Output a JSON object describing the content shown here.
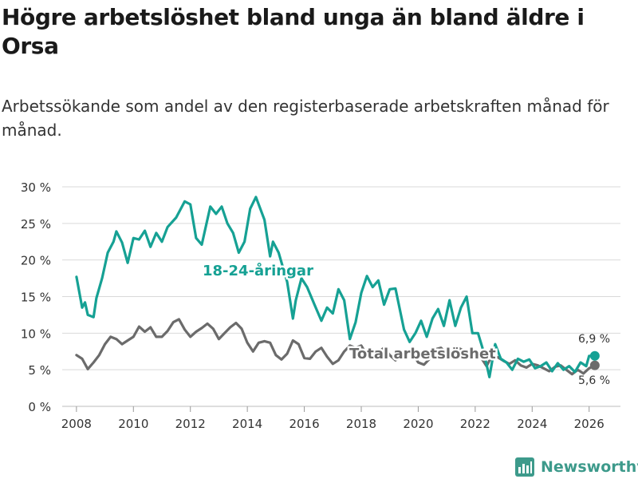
{
  "header": {
    "title": "Högre arbetslöshet bland unga än bland äldre i Orsa",
    "subtitle": "Arbetssökande som andel av den registerbaserade arbetskraften månad för månad."
  },
  "brand": {
    "name": "Newsworthy",
    "icon": "bar-chart-logo-icon"
  },
  "colors": {
    "youth": "#16a194",
    "total": "#6b6b6b",
    "grid": "#d9d9d9",
    "brand": "#3d9a8b"
  },
  "chart_data": {
    "type": "line",
    "title": "Högre arbetslöshet bland unga än bland äldre i Orsa",
    "xlabel": "",
    "ylabel": "",
    "xlim": [
      2007.5,
      2027.1
    ],
    "ylim": [
      0,
      30
    ],
    "grid": true,
    "x_ticks": [
      2008,
      2010,
      2012,
      2014,
      2016,
      2018,
      2020,
      2022,
      2024,
      2026
    ],
    "x_tick_labels": [
      "2008",
      "2010",
      "2012",
      "2014",
      "2016",
      "2018",
      "2020",
      "2022",
      "2024",
      "2026"
    ],
    "y_ticks": [
      0,
      5,
      10,
      15,
      20,
      25,
      30
    ],
    "y_tick_labels": [
      "0 %",
      "5 %",
      "10 %",
      "15 %",
      "20 %",
      "25 %",
      "30 %"
    ],
    "series": [
      {
        "name": "18-24-åringar",
        "label": "18-24-åringar",
        "end_label": "6,9 %",
        "points": [
          [
            2008.0,
            17.7
          ],
          [
            2008.2,
            13.5
          ],
          [
            2008.3,
            14.2
          ],
          [
            2008.4,
            12.5
          ],
          [
            2008.6,
            12.2
          ],
          [
            2008.7,
            14.8
          ],
          [
            2008.9,
            17.5
          ],
          [
            2009.1,
            21
          ],
          [
            2009.3,
            22.5
          ],
          [
            2009.4,
            23.9
          ],
          [
            2009.6,
            22.4
          ],
          [
            2009.8,
            19.6
          ],
          [
            2010.0,
            23
          ],
          [
            2010.2,
            22.8
          ],
          [
            2010.4,
            24
          ],
          [
            2010.6,
            21.8
          ],
          [
            2010.8,
            23.7
          ],
          [
            2011.0,
            22.5
          ],
          [
            2011.2,
            24.5
          ],
          [
            2011.5,
            25.8
          ],
          [
            2011.8,
            28
          ],
          [
            2012.0,
            27.6
          ],
          [
            2012.2,
            23
          ],
          [
            2012.4,
            22.1
          ],
          [
            2012.7,
            27.3
          ],
          [
            2012.9,
            26.3
          ],
          [
            2013.1,
            27.3
          ],
          [
            2013.3,
            25
          ],
          [
            2013.5,
            23.7
          ],
          [
            2013.7,
            21
          ],
          [
            2013.9,
            22.5
          ],
          [
            2014.1,
            27
          ],
          [
            2014.3,
            28.6
          ],
          [
            2014.6,
            25.5
          ],
          [
            2014.8,
            20.5
          ],
          [
            2014.9,
            22.5
          ],
          [
            2015.1,
            21
          ],
          [
            2015.4,
            17
          ],
          [
            2015.6,
            12
          ],
          [
            2015.7,
            14.5
          ],
          [
            2015.9,
            17.5
          ],
          [
            2016.1,
            16.3
          ],
          [
            2016.4,
            13.5
          ],
          [
            2016.6,
            11.7
          ],
          [
            2016.8,
            13.5
          ],
          [
            2017.0,
            12.7
          ],
          [
            2017.2,
            16
          ],
          [
            2017.4,
            14.5
          ],
          [
            2017.6,
            9.2
          ],
          [
            2017.8,
            11.5
          ],
          [
            2018.0,
            15.5
          ],
          [
            2018.2,
            17.8
          ],
          [
            2018.4,
            16.3
          ],
          [
            2018.6,
            17.2
          ],
          [
            2018.8,
            13.9
          ],
          [
            2019.0,
            16
          ],
          [
            2019.2,
            16.1
          ],
          [
            2019.5,
            10.5
          ],
          [
            2019.7,
            8.8
          ],
          [
            2019.9,
            10
          ],
          [
            2020.1,
            11.7
          ],
          [
            2020.3,
            9.5
          ],
          [
            2020.5,
            12
          ],
          [
            2020.7,
            13.3
          ],
          [
            2020.9,
            11
          ],
          [
            2021.1,
            14.5
          ],
          [
            2021.3,
            11
          ],
          [
            2021.5,
            13.5
          ],
          [
            2021.7,
            15
          ],
          [
            2021.9,
            10
          ],
          [
            2022.1,
            10
          ],
          [
            2022.3,
            7.4
          ],
          [
            2022.5,
            4
          ],
          [
            2022.7,
            8.5
          ],
          [
            2022.9,
            6.5
          ],
          [
            2023.1,
            6
          ],
          [
            2023.3,
            5
          ],
          [
            2023.5,
            6.5
          ],
          [
            2023.7,
            6.1
          ],
          [
            2023.9,
            6.4
          ],
          [
            2024.1,
            5.2
          ],
          [
            2024.3,
            5.5
          ],
          [
            2024.5,
            6
          ],
          [
            2024.7,
            4.8
          ],
          [
            2024.9,
            5.9
          ],
          [
            2025.1,
            5
          ],
          [
            2025.3,
            5.5
          ],
          [
            2025.5,
            4.7
          ],
          [
            2025.7,
            6
          ],
          [
            2025.9,
            5.5
          ],
          [
            2026.0,
            6.9
          ],
          [
            2026.2,
            6.9
          ]
        ]
      },
      {
        "name": "Total arbetslöshet",
        "label": "Total arbetslöshet",
        "end_label": "5,6 %",
        "points": [
          [
            2008.0,
            7
          ],
          [
            2008.2,
            6.5
          ],
          [
            2008.4,
            5.1
          ],
          [
            2008.6,
            6
          ],
          [
            2008.8,
            7
          ],
          [
            2009.0,
            8.5
          ],
          [
            2009.2,
            9.5
          ],
          [
            2009.4,
            9.2
          ],
          [
            2009.6,
            8.5
          ],
          [
            2009.8,
            9
          ],
          [
            2010.0,
            9.5
          ],
          [
            2010.2,
            10.9
          ],
          [
            2010.4,
            10.2
          ],
          [
            2010.6,
            10.8
          ],
          [
            2010.8,
            9.5
          ],
          [
            2011.0,
            9.5
          ],
          [
            2011.2,
            10.3
          ],
          [
            2011.4,
            11.5
          ],
          [
            2011.6,
            11.9
          ],
          [
            2011.8,
            10.5
          ],
          [
            2012.0,
            9.5
          ],
          [
            2012.2,
            10.2
          ],
          [
            2012.4,
            10.7
          ],
          [
            2012.6,
            11.3
          ],
          [
            2012.8,
            10.6
          ],
          [
            2013.0,
            9.2
          ],
          [
            2013.2,
            10
          ],
          [
            2013.4,
            10.8
          ],
          [
            2013.6,
            11.4
          ],
          [
            2013.8,
            10.6
          ],
          [
            2014.0,
            8.7
          ],
          [
            2014.2,
            7.5
          ],
          [
            2014.4,
            8.7
          ],
          [
            2014.6,
            8.9
          ],
          [
            2014.8,
            8.7
          ],
          [
            2015.0,
            7
          ],
          [
            2015.2,
            6.4
          ],
          [
            2015.4,
            7.2
          ],
          [
            2015.6,
            9
          ],
          [
            2015.8,
            8.5
          ],
          [
            2016.0,
            6.6
          ],
          [
            2016.2,
            6.5
          ],
          [
            2016.4,
            7.5
          ],
          [
            2016.6,
            8
          ],
          [
            2016.8,
            6.8
          ],
          [
            2017.0,
            5.8
          ],
          [
            2017.2,
            6.3
          ],
          [
            2017.4,
            7.5
          ],
          [
            2017.6,
            8.3
          ],
          [
            2017.8,
            8
          ],
          [
            2018.0,
            8.3
          ],
          [
            2018.2,
            7
          ],
          [
            2018.4,
            6.5
          ],
          [
            2018.6,
            7.4
          ],
          [
            2018.8,
            8
          ],
          [
            2019.0,
            7
          ],
          [
            2019.2,
            6.3
          ],
          [
            2019.4,
            6.8
          ],
          [
            2019.6,
            7.6
          ],
          [
            2019.8,
            7.3
          ],
          [
            2020.0,
            6
          ],
          [
            2020.2,
            5.7
          ],
          [
            2020.4,
            6.5
          ],
          [
            2020.6,
            7.8
          ],
          [
            2020.8,
            8
          ],
          [
            2021.0,
            7.2
          ],
          [
            2021.2,
            7.5
          ],
          [
            2021.4,
            8
          ],
          [
            2021.6,
            7.6
          ],
          [
            2021.8,
            7
          ],
          [
            2022.0,
            7.2
          ],
          [
            2022.2,
            6.7
          ],
          [
            2022.4,
            5.5
          ],
          [
            2022.6,
            7
          ],
          [
            2022.8,
            6.7
          ],
          [
            2023.0,
            6.2
          ],
          [
            2023.2,
            5.8
          ],
          [
            2023.4,
            6.3
          ],
          [
            2023.6,
            5.6
          ],
          [
            2023.8,
            5.3
          ],
          [
            2024.0,
            5.8
          ],
          [
            2024.2,
            5.6
          ],
          [
            2024.4,
            5.2
          ],
          [
            2024.6,
            4.8
          ],
          [
            2024.8,
            5.4
          ],
          [
            2025.0,
            5.6
          ],
          [
            2025.2,
            5
          ],
          [
            2025.4,
            4.4
          ],
          [
            2025.6,
            5
          ],
          [
            2025.8,
            4.5
          ],
          [
            2026.0,
            5.2
          ],
          [
            2026.2,
            5.6
          ]
        ]
      }
    ]
  }
}
